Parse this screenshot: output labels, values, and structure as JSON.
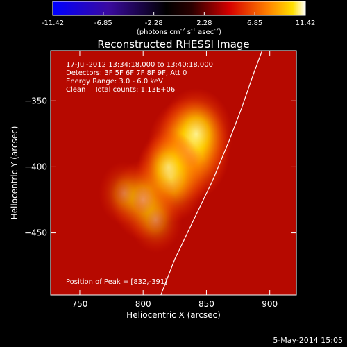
{
  "chart_data": {
    "type": "heatmap",
    "title": "Reconstructed RHESSI Image",
    "xlabel": "Heliocentric X (arcsec)",
    "ylabel": "Heliocentric Y (arcsec)",
    "xlim": [
      727,
      921
    ],
    "ylim": [
      -497,
      -312
    ],
    "x_ticks": [
      "750",
      "800",
      "850",
      "900"
    ],
    "y_ticks": [
      "-350",
      "-400",
      "-450"
    ],
    "colorbar": {
      "ticks": [
        "-11.42",
        "-6.85",
        "-2.28",
        "2.28",
        "6.85",
        "11.42"
      ],
      "range": [
        -11.42,
        11.42
      ],
      "units_prefix": "(photons cm",
      "units_exp1": "-2",
      "units_mid": " s",
      "units_exp2": "-1",
      "units_mid2": " asec",
      "units_exp3": "-2",
      "units_suffix": ")"
    },
    "annotations": {
      "time": "17-Jul-2012 13:34:18.000 to 13:40:18.000",
      "detectors": "Detectors: 3F 5F 6F 7F 8F 9F, Att 0",
      "energy": "Energy Range: 3.0 - 6.0 keV",
      "clean": "Clean    Total counts: 1.13E+06",
      "peak": "Position of Peak = [832,-391]"
    },
    "peak": [
      832,
      -391
    ],
    "sources": [
      {
        "x": 836,
        "y": -387,
        "intensity": 1.0
      },
      {
        "x": 842,
        "y": -375,
        "intensity": 0.8
      },
      {
        "x": 822,
        "y": -408,
        "intensity": 0.78
      },
      {
        "x": 800,
        "y": -425,
        "intensity": 0.62
      },
      {
        "x": 810,
        "y": -440,
        "intensity": 0.4
      },
      {
        "x": 785,
        "y": -420,
        "intensity": 0.35
      },
      {
        "x": 820,
        "y": -400,
        "intensity": 0.55
      }
    ],
    "limb": [
      [
        814,
        -497
      ],
      [
        825,
        -470
      ],
      [
        840,
        -440
      ],
      [
        855,
        -410
      ],
      [
        868,
        -380
      ],
      [
        878,
        -355
      ],
      [
        887,
        -330
      ],
      [
        894,
        -312
      ]
    ],
    "grid": false
  },
  "footer": {
    "date": "5-May-2014 15:05"
  },
  "colors": {
    "background": "#000000",
    "text": "#ffffff",
    "limb": "#ffffff"
  }
}
